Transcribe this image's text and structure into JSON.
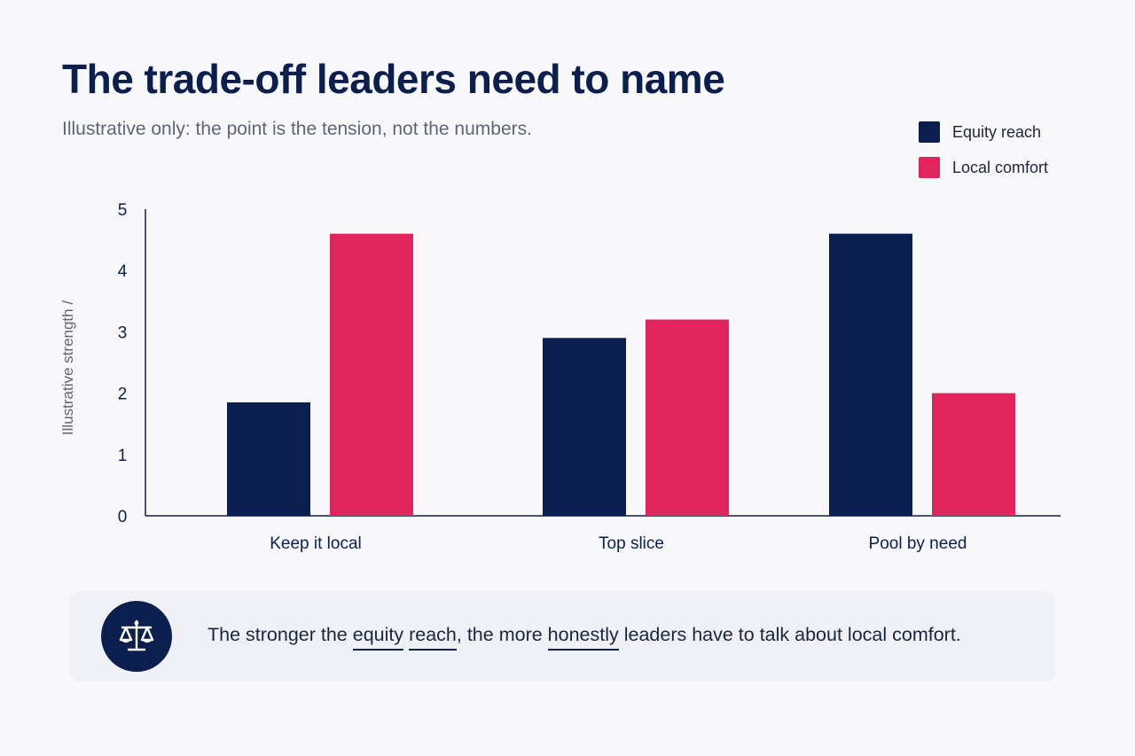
{
  "header": {
    "title": "The trade-off leaders need to name",
    "subtitle": "Illustrative only: the point is the tension, not the numbers."
  },
  "legend": {
    "items": [
      {
        "label": "Equity reach",
        "color": "#0b1f4e"
      },
      {
        "label": "Local comfort",
        "color": "#e0245e"
      }
    ]
  },
  "chart_data": {
    "type": "bar",
    "categories": [
      "Keep it local",
      "Top slice",
      "Pool by need"
    ],
    "series": [
      {
        "name": "Equity reach",
        "color": "#0b1f4e",
        "values": [
          1.85,
          2.9,
          4.6
        ]
      },
      {
        "name": "Local comfort",
        "color": "#e0245e",
        "values": [
          4.6,
          3.2,
          2.0
        ]
      }
    ],
    "title": "The trade-off leaders need to name",
    "subtitle": "Illustrative only: the point is the tension, not the numbers.",
    "xlabel": "",
    "ylabel": "Illustrative strength /",
    "ylim": [
      0,
      5
    ],
    "yticks": [
      0,
      1,
      2,
      3,
      4,
      5
    ],
    "grid": false,
    "legend_position": "top-right"
  },
  "callout": {
    "icon": "scale-icon",
    "parts": [
      "The stronger the ",
      "equity",
      " ",
      "reach",
      ", the more ",
      "honestly",
      " leaders have to talk about local comfort."
    ]
  }
}
